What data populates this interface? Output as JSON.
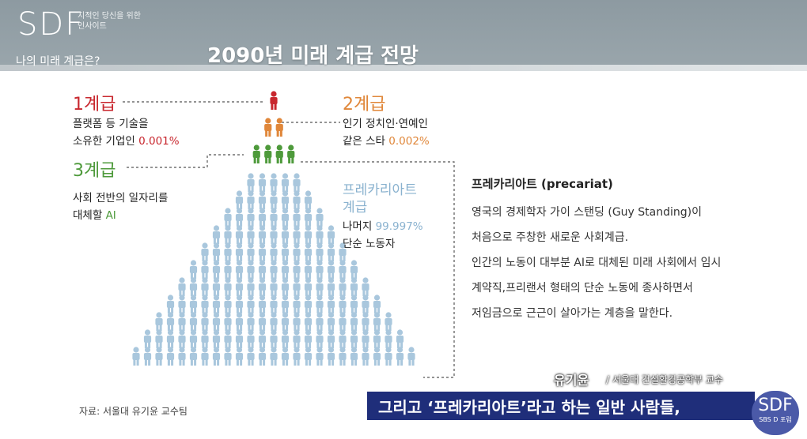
{
  "header": {
    "logo": "SDF",
    "logo_sub_1": "지적인 당신을 위한",
    "logo_sub_2": "인사이트",
    "question": "나의 미래 계급은?",
    "title": "2090년 미래 계급 전망"
  },
  "classes": {
    "c1": {
      "label": "1계급",
      "desc_1": "플랫폼 등 기술을",
      "desc_2": "소유한 기업인",
      "pct": "0.001%"
    },
    "c2": {
      "label": "2계급",
      "desc_1": "인기 정치인·연예인",
      "desc_2": "같은 스타",
      "pct": "0.002%"
    },
    "c3": {
      "label": "3계급",
      "desc_1": "사회 전반의 일자리를",
      "desc_2": "대체할",
      "ai": "AI"
    },
    "precariat": {
      "label_1": "프레카리아트",
      "label_2": "계급",
      "desc_1": "나머지",
      "pct": "99.997%",
      "desc_2": "단순 노동자"
    }
  },
  "explanation": {
    "title": "프레카리아트 (precariat)",
    "lines": [
      "영국의 경제학자 가이 스탠딩 (Guy Standing)이",
      "처음으로 주창한 새로운 사회계급.",
      "인간의 노동이 대부분 AI로 대체된 미래 사회에서 임시",
      "계약직,프리랜서 형태의 단순 노동에 종사하면서",
      "저임금으로 근근이 살아가는 계층을 말한다."
    ]
  },
  "source": "자료: 서울대 유기윤 교수팀",
  "caption": {
    "speaker": "유기윤",
    "affiliation": "/ 서울대 건설환경공학부 교수",
    "subtitle": "그리고 ‘프레카리아트’라고 하는 일반 사람들,"
  },
  "corner_logo": {
    "main": "SDF",
    "sub": "SBS D 포럼"
  },
  "colors": {
    "red": "#c8272e",
    "orange": "#e0873a",
    "green": "#4e9a3b",
    "blue": "#a9c7dd",
    "navy": "#1f2e7a"
  },
  "pyramid": {
    "top": 1,
    "second": 2,
    "third": 4
  }
}
